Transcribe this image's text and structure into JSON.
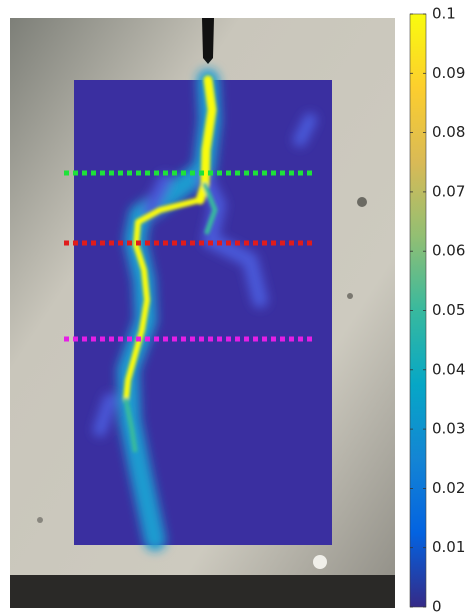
{
  "chart_data": {
    "type": "colorbar-image",
    "clim": [
      0,
      0.1
    ],
    "cticks": [
      0,
      0.01,
      0.02,
      0.03,
      0.04,
      0.05,
      0.06,
      0.07,
      0.08,
      0.09,
      0.1
    ],
    "colormap": [
      "#352a87",
      "#0363e1",
      "#1485d4",
      "#06a7c6",
      "#38b99e",
      "#92bf73",
      "#d9ba56",
      "#fcce2e",
      "#f9fb0e"
    ]
  }
}
